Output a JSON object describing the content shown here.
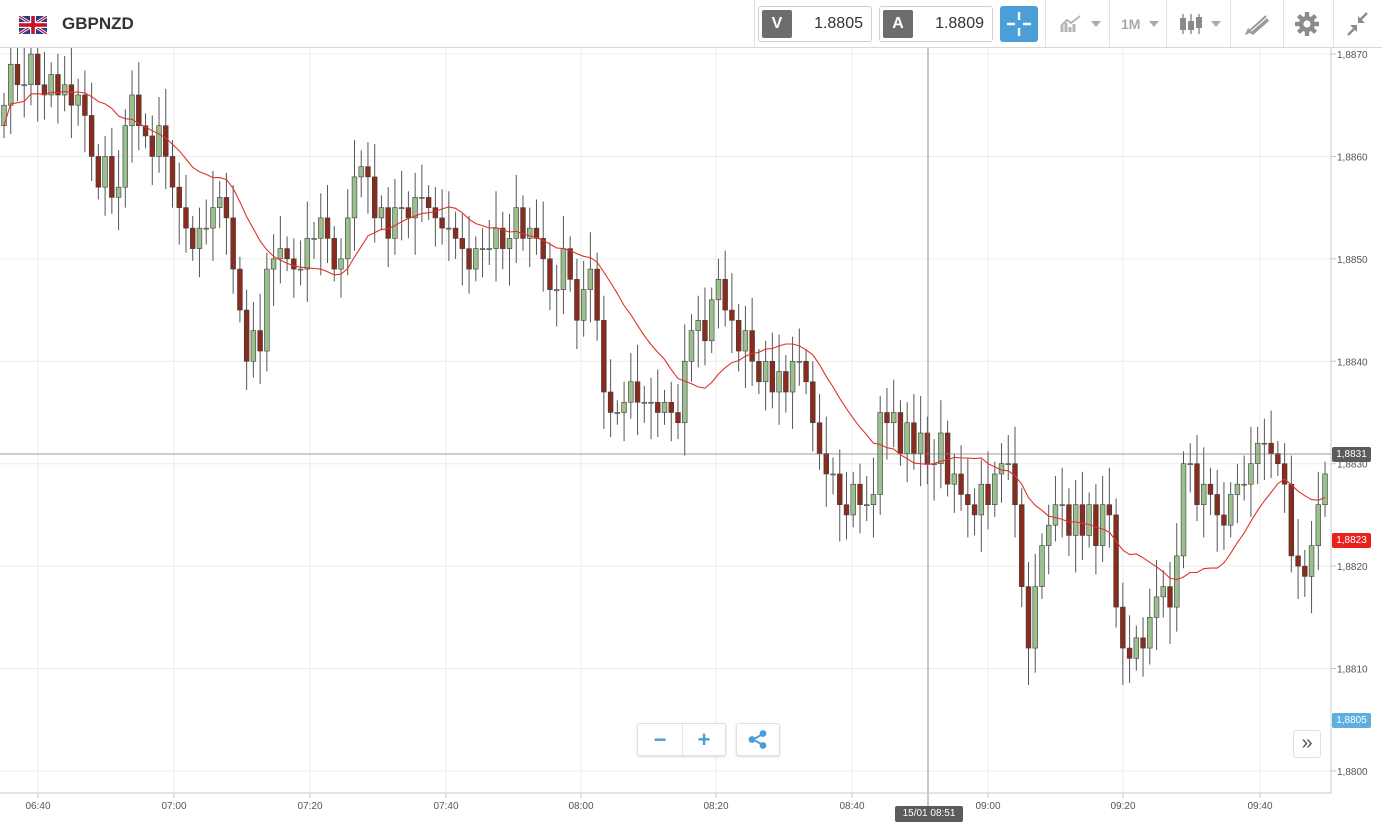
{
  "header": {
    "symbol": "GBPNZD",
    "sell_label": "V",
    "sell_price": "1.8805",
    "buy_label": "A",
    "buy_price": "1.8809",
    "timeframe": "1M",
    "icons": [
      "uk-flag-icon",
      "crosshair-icon",
      "line-chart-icon",
      "chevron-down-icon",
      "candlestick-icon",
      "drawing-tools-icon",
      "gear-icon",
      "collapse-icon"
    ]
  },
  "chart": {
    "crosshair_price": "1,8831",
    "current_price": "1,8823",
    "bid_price": "1,8805",
    "crosshair_time": "15/01 08:51",
    "colors": {
      "up": "#9cbf8e",
      "down": "#8a2b1e",
      "ma": "#e0322b",
      "current": "#e8211d",
      "bid": "#5eaee0",
      "crosshair": "#6a6a6a"
    }
  },
  "controls": {
    "zoom_out": "−",
    "zoom_in": "+",
    "scroll_end": "»"
  },
  "chart_data": {
    "type": "candlestick",
    "y_ticks": [
      "1,8800",
      "1,8810",
      "1,8820",
      "1,8830",
      "1,8840",
      "1,8850",
      "1,8860",
      "1,8870"
    ],
    "x_ticks": [
      "06:40",
      "07:00",
      "07:20",
      "07:40",
      "08:00",
      "08:20",
      "08:40",
      "09:00",
      "09:20",
      "09:40"
    ],
    "ylim": [
      1.87975,
      1.88712
    ],
    "grid": true,
    "open": [
      1.8863,
      1.8865,
      1.8869,
      1.8867,
      1.8867,
      1.887,
      1.8867,
      1.8866,
      1.8868,
      1.8866,
      1.8867,
      1.8865,
      1.8866,
      1.8864,
      1.886,
      1.8857,
      1.886,
      1.8856,
      1.8857,
      1.8863,
      1.8866,
      1.8863,
      1.8862,
      1.886,
      1.8863,
      1.886,
      1.8857,
      1.8855,
      1.8853,
      1.8851,
      1.8853,
      1.8853,
      1.8855,
      1.8856,
      1.8854,
      1.8849,
      1.8845,
      1.884,
      1.8843,
      1.8841,
      1.8849,
      1.885,
      1.8851,
      1.885,
      1.8849,
      1.8849,
      1.8852,
      1.8852,
      1.8854,
      1.8852,
      1.8849,
      1.885,
      1.8854,
      1.8858,
      1.8859,
      1.8858,
      1.8854,
      1.8855,
      1.8852,
      1.8855,
      1.8855,
      1.8854,
      1.8856,
      1.8856,
      1.8855,
      1.8854,
      1.8853,
      1.8853,
      1.8852,
      1.8851,
      1.8849,
      1.8851,
      1.8851,
      1.8851,
      1.8853,
      1.8851,
      1.8852,
      1.8855,
      1.8852,
      1.8853,
      1.8852,
      1.885,
      1.8847,
      1.8847,
      1.8851,
      1.8848,
      1.8844,
      1.8847,
      1.8849,
      1.8844,
      1.8837,
      1.8835,
      1.8835,
      1.8836,
      1.8838,
      1.8836,
      1.8836,
      1.8836,
      1.8835,
      1.8836,
      1.8835,
      1.8834,
      1.884,
      1.8843,
      1.8844,
      1.8842,
      1.8846,
      1.8848,
      1.8845,
      1.8844,
      1.8841,
      1.8843,
      1.884,
      1.8838,
      1.884,
      1.8837,
      1.8839,
      1.8837,
      1.884,
      1.884,
      1.8838,
      1.8834,
      1.8831,
      1.8829,
      1.8829,
      1.8826,
      1.8825,
      1.8828,
      1.8826,
      1.8826,
      1.8827,
      1.8835,
      1.8834,
      1.8835,
      1.8831,
      1.8834,
      1.8831,
      1.8833,
      1.883,
      1.883,
      1.8833,
      1.8828,
      1.8829,
      1.8827,
      1.8826,
      1.8825,
      1.8828,
      1.8826,
      1.8829,
      1.883,
      1.883,
      1.8826,
      1.8818,
      1.8812,
      1.8818,
      1.8822,
      1.8824,
      1.8826,
      1.8826,
      1.8823,
      1.8826,
      1.8823,
      1.8826,
      1.8822,
      1.8826,
      1.8825,
      1.8816,
      1.8812,
      1.8811,
      1.8813,
      1.8812,
      1.8815,
      1.8817,
      1.8818,
      1.8816,
      1.8821,
      1.883,
      1.883,
      1.8826,
      1.8828,
      1.8827,
      1.8825,
      1.8824,
      1.8827,
      1.8828,
      1.8828,
      1.883,
      1.8832,
      1.8832,
      1.8831,
      1.883,
      1.8828,
      1.8821,
      1.882,
      1.8819,
      1.8822,
      1.8826,
      1.8829
    ]
  }
}
